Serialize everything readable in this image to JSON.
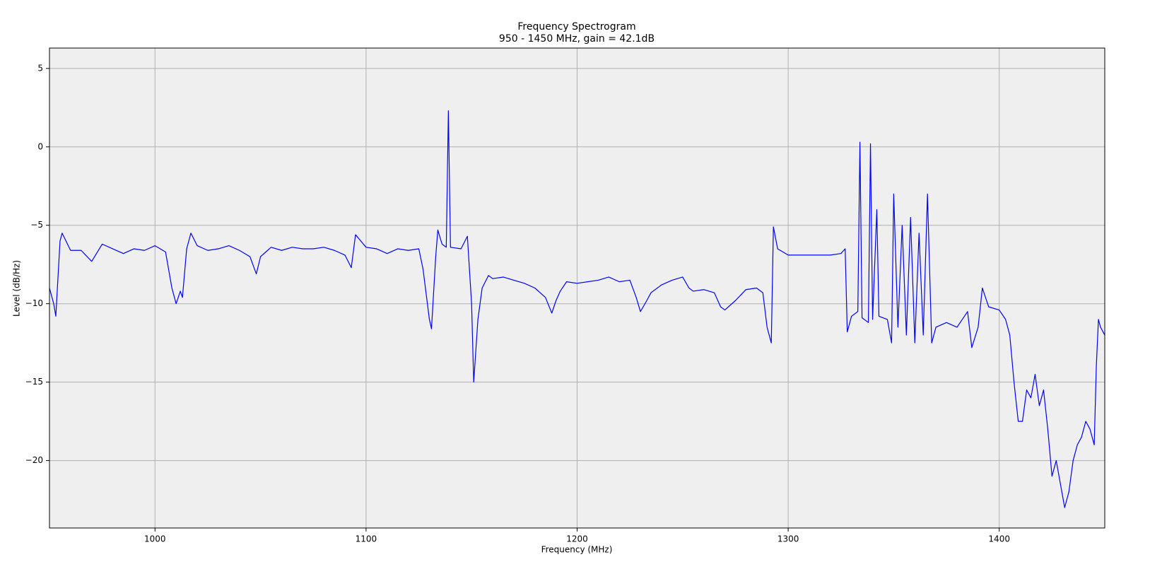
{
  "chart_data": {
    "type": "line",
    "title": "Frequency Spectrogram",
    "subtitle": "950 - 1450 MHz, gain = 42.1dB",
    "x_label": "Frequency (MHz)",
    "y_label": "Level (dB/Hz)",
    "color": "#0000ff",
    "grid": true,
    "xlim": [
      950,
      1450
    ],
    "ylim": [
      -24.3,
      6.3
    ],
    "xticks": [
      1000,
      1100,
      1200,
      1300,
      1400
    ],
    "yticks": [
      {
        "value": -20,
        "label": "−20"
      },
      {
        "value": -15,
        "label": "−15"
      },
      {
        "value": -10,
        "label": "−10"
      },
      {
        "value": -5,
        "label": "−5"
      },
      0,
      5
    ],
    "x": [
      950,
      952,
      953,
      955,
      956,
      960,
      965,
      970,
      975,
      980,
      985,
      990,
      995,
      1000,
      1005,
      1008,
      1010,
      1012,
      1013,
      1015,
      1017,
      1020,
      1025,
      1030,
      1035,
      1040,
      1045,
      1048,
      1050,
      1055,
      1060,
      1065,
      1070,
      1075,
      1080,
      1085,
      1090,
      1093,
      1095,
      1100,
      1105,
      1110,
      1115,
      1120,
      1125,
      1127,
      1130,
      1131,
      1133,
      1134,
      1136,
      1138,
      1139,
      1140,
      1145,
      1148,
      1150,
      1151,
      1153,
      1155,
      1158,
      1160,
      1165,
      1170,
      1175,
      1180,
      1185,
      1188,
      1190,
      1192,
      1195,
      1200,
      1205,
      1210,
      1215,
      1220,
      1225,
      1228,
      1230,
      1233,
      1235,
      1240,
      1245,
      1250,
      1253,
      1255,
      1260,
      1265,
      1268,
      1270,
      1275,
      1280,
      1285,
      1288,
      1290,
      1292,
      1293,
      1295,
      1300,
      1305,
      1310,
      1315,
      1320,
      1325,
      1327,
      1328,
      1330,
      1333,
      1334,
      1335,
      1338,
      1339,
      1340,
      1342,
      1343,
      1347,
      1349,
      1350,
      1352,
      1354,
      1356,
      1358,
      1360,
      1362,
      1364,
      1366,
      1368,
      1370,
      1375,
      1380,
      1385,
      1387,
      1390,
      1392,
      1395,
      1400,
      1403,
      1405,
      1407,
      1409,
      1411,
      1413,
      1415,
      1417,
      1419,
      1421,
      1423,
      1425,
      1427,
      1429,
      1431,
      1433,
      1435,
      1437,
      1439,
      1441,
      1443,
      1445,
      1446,
      1447,
      1448,
      1450
    ],
    "values": [
      -9,
      -10,
      -10.8,
      -6,
      -5.5,
      -6.6,
      -6.6,
      -7.3,
      -6.2,
      -6.5,
      -6.8,
      -6.5,
      -6.6,
      -6.3,
      -6.7,
      -9,
      -10,
      -9.2,
      -9.6,
      -6.5,
      -5.5,
      -6.3,
      -6.6,
      -6.5,
      -6.3,
      -6.6,
      -7,
      -8.1,
      -7,
      -6.4,
      -6.6,
      -6.4,
      -6.5,
      -6.5,
      -6.4,
      -6.6,
      -6.9,
      -7.7,
      -5.6,
      -6.4,
      -6.5,
      -6.8,
      -6.5,
      -6.6,
      -6.5,
      -7.8,
      -11,
      -11.6,
      -7,
      -5.3,
      -6.2,
      -6.4,
      2.3,
      -6.4,
      -6.5,
      -5.7,
      -10,
      -15,
      -11,
      -9,
      -8.2,
      -8.4,
      -8.3,
      -8.5,
      -8.7,
      -9,
      -9.6,
      -10.6,
      -9.8,
      -9.2,
      -8.6,
      -8.7,
      -8.6,
      -8.5,
      -8.3,
      -8.6,
      -8.5,
      -9.6,
      -10.5,
      -9.8,
      -9.3,
      -8.8,
      -8.5,
      -8.3,
      -9,
      -9.2,
      -9.1,
      -9.3,
      -10.2,
      -10.4,
      -9.8,
      -9.1,
      -9,
      -9.3,
      -11.5,
      -12.5,
      -5.1,
      -6.5,
      -6.9,
      -6.9,
      -6.9,
      -6.9,
      -6.9,
      -6.8,
      -6.5,
      -11.8,
      -10.8,
      -10.5,
      0.3,
      -10.9,
      -11.2,
      0.2,
      -11,
      -4,
      -10.8,
      -11,
      -12.5,
      -3,
      -11.5,
      -5,
      -12,
      -4.5,
      -12.5,
      -5.5,
      -12,
      -3,
      -12.5,
      -11.5,
      -11.2,
      -11.5,
      -10.5,
      -12.8,
      -11.5,
      -9,
      -10.2,
      -10.4,
      -11,
      -12,
      -15,
      -17.5,
      -17.5,
      -15.5,
      -16,
      -14.5,
      -16.5,
      -15.5,
      -18,
      -21,
      -20,
      -21.5,
      -23,
      -22,
      -20,
      -19,
      -18.5,
      -17.5,
      -18,
      -19,
      -14,
      -11,
      -11.5,
      -12
    ]
  }
}
